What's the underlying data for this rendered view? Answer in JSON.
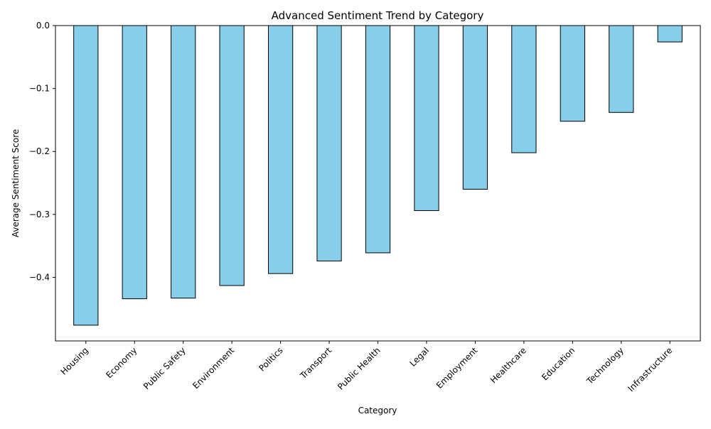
{
  "chart_data": {
    "type": "bar",
    "title": "Advanced Sentiment Trend by Category",
    "xlabel": "Category",
    "ylabel": "Average Sentiment Score",
    "categories": [
      "Housing",
      "Economy",
      "Public Safety",
      "Environment",
      "Politics",
      "Transport",
      "Public Health",
      "Legal",
      "Employment",
      "Healthcare",
      "Education",
      "Technology",
      "Infrastructure"
    ],
    "values": [
      -0.476,
      -0.434,
      -0.433,
      -0.413,
      -0.394,
      -0.374,
      -0.361,
      -0.294,
      -0.26,
      -0.202,
      -0.152,
      -0.138,
      -0.026
    ],
    "ylim": [
      -0.501,
      0.0
    ],
    "yticks": [
      0.0,
      -0.1,
      -0.2,
      -0.3,
      -0.4
    ],
    "ytick_labels": [
      "0.0",
      "−0.1",
      "−0.2",
      "−0.3",
      "−0.4"
    ],
    "grid": false,
    "legend": "none",
    "colors": {
      "bar_fill": "#87ceeb",
      "bar_edge": "#000000"
    }
  }
}
